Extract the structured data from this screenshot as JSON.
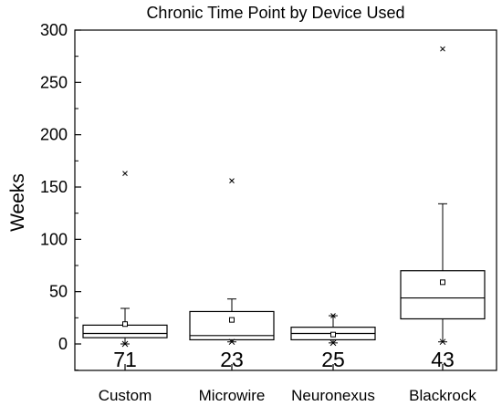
{
  "chart_data": {
    "type": "box",
    "title": "Chronic Time Point by Device Used",
    "xlabel": "",
    "ylabel": "Weeks",
    "ylim": [
      -25,
      300
    ],
    "yticks": [
      0,
      50,
      100,
      150,
      200,
      250,
      300
    ],
    "grid": false,
    "legend": "none",
    "categories": [
      "Custom",
      "Microwire",
      "Neuronexus",
      "Blackrock"
    ],
    "boxes": [
      {
        "category": "Custom",
        "n": "71",
        "min": 0,
        "q1": 6,
        "median": 10,
        "q3": 18,
        "whisker_low": 0,
        "whisker_high": 34,
        "mean": 19,
        "max": 163
      },
      {
        "category": "Microwire",
        "n": "23",
        "min": 2,
        "q1": 4,
        "median": 8,
        "q3": 31,
        "whisker_low": 2,
        "whisker_high": 43,
        "mean": 23,
        "max": 156
      },
      {
        "category": "Neuronexus",
        "n": "25",
        "min": 1,
        "q1": 4,
        "median": 10,
        "q3": 16,
        "whisker_low": 1,
        "whisker_high": 27,
        "mean": 9,
        "max": 27
      },
      {
        "category": "Blackrock",
        "n": "43",
        "min": 2,
        "q1": 24,
        "median": 44,
        "q3": 70,
        "whisker_low": 2,
        "whisker_high": 134,
        "mean": 59,
        "max": 282
      }
    ]
  }
}
